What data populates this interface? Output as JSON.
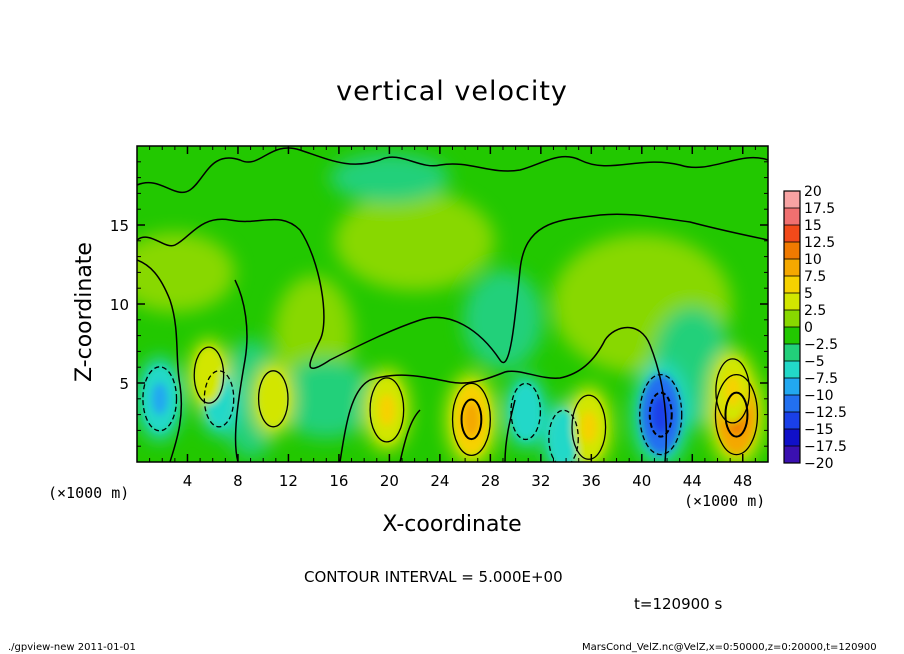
{
  "chart_data": {
    "type": "heatmap",
    "title": "vertical velocity",
    "xlabel": "X-coordinate",
    "ylabel": "Z-coordinate",
    "x_unit": "(×1000 m)",
    "y_unit": "(×1000 m)",
    "xlim": [
      0,
      50
    ],
    "ylim": [
      0,
      20
    ],
    "x_ticks": [
      "4",
      "8",
      "12",
      "16",
      "20",
      "24",
      "28",
      "32",
      "36",
      "40",
      "44",
      "48"
    ],
    "x_tick_values": [
      4,
      8,
      12,
      16,
      20,
      24,
      28,
      32,
      36,
      40,
      44,
      48
    ],
    "y_ticks": [
      "5",
      "10",
      "15"
    ],
    "y_tick_values": [
      5,
      10,
      15
    ],
    "colorbar": {
      "levels": [
        "20",
        "17.5",
        "15",
        "12.5",
        "10",
        "7.5",
        "5",
        "2.5",
        "0",
        "−2.5",
        "−5",
        "−7.5",
        "−10",
        "−12.5",
        "−15",
        "−17.5",
        "−20"
      ],
      "colors": [
        "#f7a3a3",
        "#f07070",
        "#f24a1a",
        "#f07a00",
        "#f4a800",
        "#f6d200",
        "#d2e600",
        "#88d800",
        "#22c800",
        "#22d07a",
        "#22d8c8",
        "#22a8f0",
        "#2270f0",
        "#1a40e8",
        "#1010c8",
        "#3a10b0",
        "#6a20b8"
      ]
    },
    "background_level": "0",
    "features": [
      {
        "kind": "downdraft",
        "x": 1.8,
        "z": 4.0,
        "value": -7.5
      },
      {
        "kind": "downdraft",
        "x": 6.5,
        "z": 4.0,
        "value": -5
      },
      {
        "kind": "updraft",
        "x": 5.7,
        "z": 5.5,
        "value": 5
      },
      {
        "kind": "updraft",
        "x": 10.8,
        "z": 4.0,
        "value": 5
      },
      {
        "kind": "updraft",
        "x": 19.8,
        "z": 3.3,
        "value": 7.5
      },
      {
        "kind": "updraft",
        "x": 26.5,
        "z": 2.7,
        "value": 10
      },
      {
        "kind": "downdraft",
        "x": 30.8,
        "z": 3.2,
        "value": -5
      },
      {
        "kind": "downdraft",
        "x": 33.8,
        "z": 1.5,
        "value": -5
      },
      {
        "kind": "updraft",
        "x": 35.8,
        "z": 2.2,
        "value": 7.5
      },
      {
        "kind": "downdraft",
        "x": 41.5,
        "z": 3.0,
        "value": -12.5
      },
      {
        "kind": "updraft",
        "x": 47.5,
        "z": 3.0,
        "value": 12.5
      },
      {
        "kind": "updraft",
        "x": 47.2,
        "z": 4.5,
        "value": 7.5
      }
    ],
    "grid": false,
    "legend": "right"
  },
  "contour_interval": "CONTOUR INTERVAL = 5.000E+00",
  "time_label": "t=120900 s",
  "footer_left": "./gpview-new   2011-01-01",
  "footer_right": "MarsCond_VelZ.nc@VelZ,x=0:50000,z=0:20000,t=120900"
}
